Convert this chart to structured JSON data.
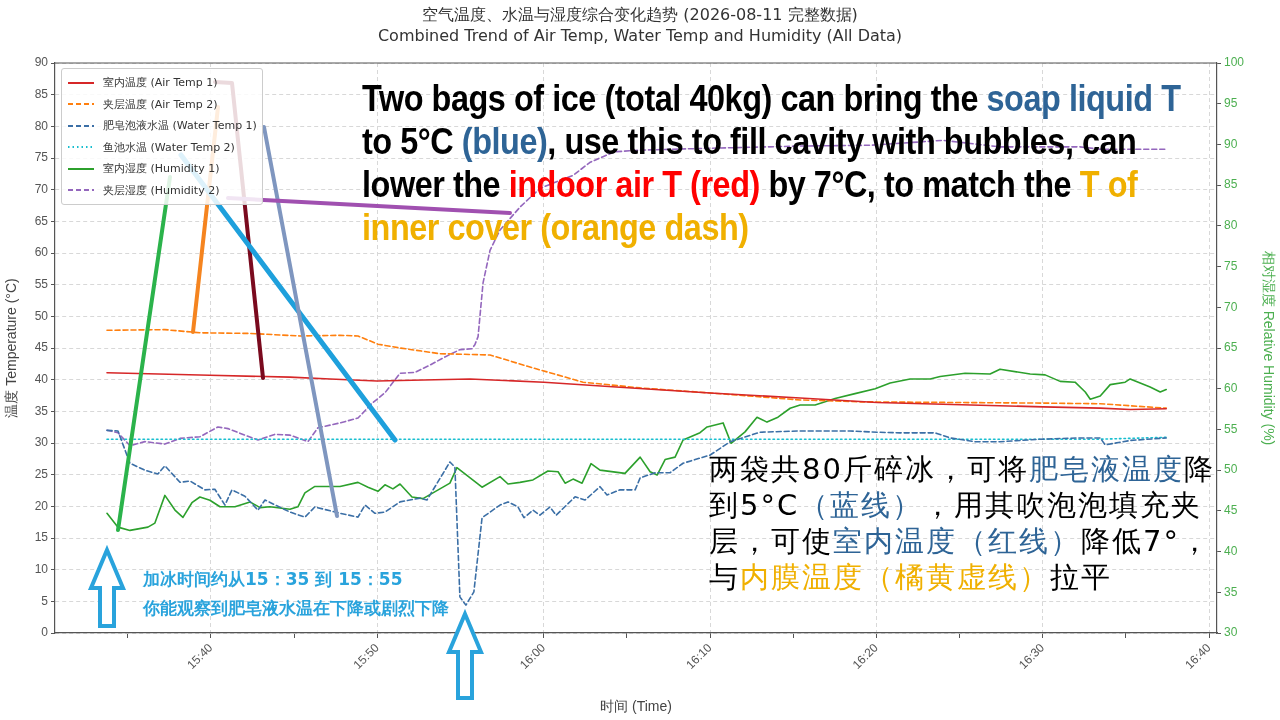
{
  "chart_data": {
    "type": "line",
    "title": "空气温度、水温与湿度综合变化趋势 (2026-08-11 完整数据)",
    "subtitle": "Combined Trend of Air Temp, Water Temp and Humidity (All Data)",
    "xlabel": "时间 (Time)",
    "ylabel": "温度 Temperature (°C)",
    "y2label": "相对湿度 Relative Humidity (%)",
    "xlim": [
      15.5104,
      16.6747
    ],
    "xticks": [
      {
        "value": 15.5833,
        "label": null
      },
      {
        "value": 15.6667,
        "label": "15:40"
      },
      {
        "value": 15.75,
        "label": null
      },
      {
        "value": 15.8333,
        "label": "15:50"
      },
      {
        "value": 15.9167,
        "label": null
      },
      {
        "value": 16.0,
        "label": "16:00"
      },
      {
        "value": 16.0833,
        "label": null
      },
      {
        "value": 16.1667,
        "label": "16:10"
      },
      {
        "value": 16.25,
        "label": null
      },
      {
        "value": 16.3333,
        "label": "16:20"
      },
      {
        "value": 16.4167,
        "label": null
      },
      {
        "value": 16.5,
        "label": "16:30"
      },
      {
        "value": 16.5833,
        "label": null
      },
      {
        "value": 16.6667,
        "label": "16:40"
      }
    ],
    "ylim": [
      0,
      90
    ],
    "yticks": [
      0,
      5,
      10,
      15,
      20,
      25,
      30,
      35,
      40,
      45,
      50,
      55,
      60,
      65,
      70,
      75,
      80,
      85,
      90
    ],
    "y2lim": [
      30,
      100
    ],
    "y2ticks": [
      30,
      35,
      40,
      45,
      50,
      55,
      60,
      65,
      70,
      75,
      80,
      85,
      90,
      95,
      100
    ],
    "grid": true,
    "legend": "top left",
    "marker": "none",
    "series": [
      {
        "name": "室内温度 (Air Temp 1)",
        "color": "#d62728",
        "line_style": "solid",
        "x": [
          15.5625,
          15.6656,
          15.7458,
          15.786,
          15.833,
          15.9261,
          16.0003,
          16.0765,
          16.1668,
          16.257,
          16.3342,
          16.5005,
          16.5577,
          16.5877,
          16.6238
        ],
        "values": [
          41.1,
          40.7,
          40.4,
          40.1,
          39.8,
          40.1,
          39.6,
          38.8,
          37.9,
          37.1,
          36.4,
          35.7,
          35.5,
          35.3,
          35.4
        ]
      },
      {
        "name": "夹层温度 (Air Temp 2)",
        "color": "#ff7f0e",
        "line_style": "dashed",
        "x": [
          15.5625,
          15.6205,
          15.6556,
          15.7058,
          15.7558,
          15.796,
          15.814,
          15.834,
          15.8561,
          15.8961,
          15.9463,
          15.9863,
          16.0395,
          16.0967,
          16.1668,
          16.257,
          16.3172,
          16.5005,
          16.5577,
          16.6238
        ],
        "values": [
          47.8,
          47.9,
          47.4,
          47.3,
          46.9,
          47.0,
          46.9,
          45.6,
          45.0,
          44.1,
          43.9,
          42.0,
          39.6,
          38.7,
          37.9,
          36.8,
          36.5,
          36.3,
          36.2,
          35.5
        ]
      },
      {
        "name": "肥皂泡液水温 (Water Temp 1)",
        "color": "#3b6fa6",
        "line_style": "dashed",
        "x": [
          15.5625,
          15.5735,
          15.5855,
          15.6005,
          15.6135,
          15.6205,
          15.6356,
          15.6456,
          15.6606,
          15.6706,
          15.6807,
          15.6877,
          15.7007,
          15.7138,
          15.7208,
          15.7458,
          15.7608,
          15.7708,
          15.796,
          15.814,
          15.821,
          15.831,
          15.841,
          15.8561,
          15.8761,
          15.8831,
          15.9061,
          15.9111,
          15.9161,
          15.9221,
          15.9301,
          15.9383,
          15.9563,
          15.9643,
          15.9743,
          15.9803,
          15.9893,
          15.9963,
          16.0063,
          16.0125,
          16.0315,
          16.0415,
          16.0565,
          16.0635,
          16.0765,
          16.0917,
          16.0967,
          16.1117,
          16.1267,
          16.1397,
          16.1668,
          16.1868,
          16.2168,
          16.257,
          16.307,
          16.3342,
          16.3572,
          16.3923,
          16.4073,
          16.4323,
          16.4573,
          16.4975,
          16.5375,
          16.5577,
          16.5627,
          16.5877,
          16.6238
        ],
        "values": [
          32.0,
          31.9,
          26.8,
          25.7,
          25.1,
          26.4,
          23.8,
          24.0,
          22.6,
          22.7,
          20.2,
          22.6,
          21.6,
          19.4,
          21.0,
          19.1,
          18.3,
          19.9,
          18.9,
          18.3,
          20.2,
          18.9,
          19.1,
          20.7,
          21.3,
          21.0,
          27.0,
          26.2,
          5.7,
          4.4,
          6.5,
          18.2,
          20.2,
          20.7,
          19.9,
          18.2,
          19.4,
          18.6,
          19.9,
          18.6,
          21.5,
          21.0,
          23.1,
          21.8,
          22.6,
          22.6,
          24.5,
          25.3,
          25.3,
          26.8,
          28.1,
          30.2,
          31.7,
          31.9,
          31.9,
          31.7,
          31.6,
          31.6,
          30.8,
          30.2,
          30.2,
          30.6,
          30.8,
          30.8,
          29.7,
          30.4,
          30.8
        ]
      },
      {
        "name": "鱼池水温 (Water Temp 2)",
        "color": "#17becf",
        "line_style": "dotted",
        "x": [
          15.5625,
          16.0565,
          16.5577,
          16.6238
        ],
        "values": [
          30.6,
          30.6,
          30.6,
          30.9
        ]
      },
      {
        "name": "室内湿度 (Humidity 1)",
        "color": "#2ca02c",
        "line_style": "solid",
        "axis": "y2",
        "x": [
          15.5625,
          15.5735,
          15.5855,
          15.6035,
          15.6105,
          15.6205,
          15.6306,
          15.6386,
          15.6476,
          15.6556,
          15.6656,
          15.6757,
          15.6907,
          15.7058,
          15.7158,
          15.7258,
          15.7458,
          15.7538,
          15.7608,
          15.7708,
          15.796,
          15.814,
          15.824,
          15.834,
          15.841,
          15.849,
          15.8561,
          15.8681,
          15.8791,
          15.9061,
          15.9131,
          15.9383,
          15.9563,
          15.9643,
          15.9763,
          15.9893,
          16.0043,
          16.0145,
          16.0215,
          16.0295,
          16.0385,
          16.0475,
          16.0565,
          16.0815,
          16.0967,
          16.1067,
          16.1137,
          16.1217,
          16.1317,
          16.1397,
          16.1567,
          16.1638,
          16.1798,
          16.1878,
          16.2018,
          16.2138,
          16.2238,
          16.2348,
          16.247,
          16.257,
          16.272,
          16.292,
          16.312,
          16.3322,
          16.3472,
          16.3672,
          16.3873,
          16.3973,
          16.4223,
          16.4473,
          16.4573,
          16.4875,
          16.5025,
          16.5175,
          16.5325,
          16.5427,
          16.5477,
          16.5577,
          16.5677,
          16.5827,
          16.5877,
          16.6077,
          16.6178,
          16.6238
        ],
        "values": [
          44.7,
          43.0,
          42.6,
          43.0,
          43.5,
          46.9,
          45.1,
          44.2,
          46.0,
          46.7,
          46.3,
          45.5,
          45.5,
          46.1,
          45.4,
          45.5,
          45.2,
          45.5,
          47.2,
          48.0,
          48.0,
          48.5,
          47.9,
          47.4,
          48.2,
          47.7,
          48.3,
          46.7,
          46.5,
          48.4,
          50.3,
          47.9,
          49.2,
          48.3,
          48.5,
          48.8,
          49.9,
          49.8,
          48.4,
          48.9,
          48.4,
          50.8,
          50.0,
          49.6,
          51.6,
          49.8,
          49.4,
          51.3,
          51.6,
          53.7,
          54.6,
          55.3,
          55.8,
          53.3,
          54.7,
          56.5,
          55.9,
          56.5,
          57.6,
          58.0,
          58.0,
          58.8,
          59.4,
          60.0,
          60.7,
          61.2,
          61.2,
          61.5,
          61.9,
          61.8,
          62.4,
          61.8,
          61.7,
          60.9,
          60.8,
          59.6,
          58.7,
          59.1,
          60.5,
          60.8,
          61.2,
          60.2,
          59.6,
          59.9
        ]
      },
      {
        "name": "夹层湿度 (Humidity 2)",
        "color": "#9467bd",
        "line_style": "dashed",
        "axis": "y2",
        "x": [
          15.5625,
          15.5735,
          15.5855,
          15.6005,
          15.6205,
          15.6356,
          15.6556,
          15.6737,
          15.6837,
          15.7007,
          15.7138,
          15.7308,
          15.7458,
          15.7638,
          15.7738,
          15.796,
          15.814,
          15.828,
          15.841,
          15.8561,
          15.8711,
          15.8861,
          15.9011,
          15.9161,
          15.9281,
          15.9311,
          15.9343,
          15.9393,
          15.9463,
          15.9563,
          15.9763,
          15.9963,
          16.0165,
          16.0295,
          16.0465,
          16.0595,
          16.0715,
          16.0967,
          16.1567,
          16.257,
          16.3272,
          16.4003,
          16.4573,
          16.5375,
          16.5577,
          16.6238
        ],
        "values": [
          54.9,
          54.6,
          53.0,
          53.5,
          53.2,
          53.9,
          54.1,
          55.3,
          55.1,
          54.3,
          53.7,
          54.4,
          54.3,
          53.5,
          55.2,
          55.8,
          56.4,
          58.2,
          59.5,
          61.9,
          62.0,
          62.9,
          63.9,
          64.8,
          64.9,
          65.4,
          66.4,
          73.0,
          77.0,
          79.5,
          82.3,
          84.6,
          85.6,
          86.2,
          87.8,
          88.5,
          89.1,
          89.3,
          89.5,
          89.8,
          89.9,
          90.5,
          89.7,
          89.7,
          89.4,
          89.4
        ]
      }
    ],
    "annotations": [
      "Two bags of ice (total 40kg) can bring the ",
      "soap liquid T",
      " to 5°C ",
      "(blue)",
      ", use this to fill cavity with bubbles, can lower the ",
      "indoor air T (red)",
      " by 7°C, to match the ",
      "T of inner cover (orange dash)",
      "两袋共80斤碎冰，可将",
      "肥皂液温度",
      "降到5°C",
      "（蓝线）",
      "，用其吹泡泡填充夹层，可使",
      "室内温度（红线）",
      "降低7°，与",
      "内膜温度（橘黄虚线）",
      "拉平",
      "加冰时间约从15：35 到 15：55",
      "你能观察到肥皂液水温在下降或剧烈下降"
    ]
  }
}
